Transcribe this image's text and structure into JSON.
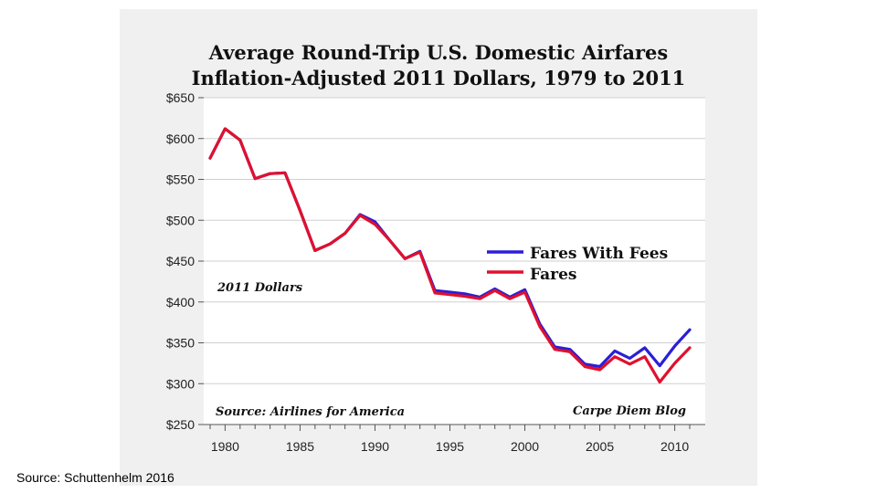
{
  "chart_data": {
    "type": "line",
    "title_line1": "Average Round-Trip U.S. Domestic Airfares",
    "title_line2": "Inflation-Adjusted 2011 Dollars, 1979 to 2011",
    "xlabel": "",
    "ylabel": "",
    "xlim": [
      1979,
      2011
    ],
    "ylim": [
      250,
      650
    ],
    "x_ticks": [
      1980,
      1985,
      1990,
      1995,
      2000,
      2005,
      2010
    ],
    "y_ticks": [
      250,
      300,
      350,
      400,
      450,
      500,
      550,
      600,
      650
    ],
    "y_tick_labels": [
      "$250",
      "$300",
      "$350",
      "$400",
      "$450",
      "$500",
      "$550",
      "$600",
      "$650"
    ],
    "x": [
      1979,
      1980,
      1981,
      1982,
      1983,
      1984,
      1985,
      1986,
      1987,
      1988,
      1989,
      1990,
      1991,
      1992,
      1993,
      1994,
      1995,
      1996,
      1997,
      1998,
      1999,
      2000,
      2001,
      2002,
      2003,
      2004,
      2005,
      2006,
      2007,
      2008,
      2009,
      2010,
      2011
    ],
    "series": [
      {
        "name": "Fares With Fees",
        "color": "#2b1ed6",
        "values": [
          576,
          612,
          598,
          551,
          557,
          558,
          512,
          463,
          471,
          484,
          507,
          498,
          475,
          453,
          462,
          414,
          412,
          410,
          406,
          416,
          406,
          415,
          373,
          345,
          342,
          324,
          321,
          340,
          331,
          344,
          322,
          346,
          366
        ]
      },
      {
        "name": "Fares",
        "color": "#e0102e",
        "values": [
          576,
          612,
          598,
          551,
          557,
          558,
          512,
          463,
          471,
          484,
          506,
          495,
          475,
          453,
          461,
          411,
          409,
          407,
          404,
          414,
          404,
          412,
          370,
          342,
          339,
          321,
          317,
          333,
          324,
          333,
          302,
          325,
          344
        ]
      }
    ],
    "annotations": {
      "units": "2011 Dollars",
      "source": "Source: Airlines for America",
      "blog": "Carpe Diem Blog"
    }
  },
  "footer": {
    "source": "Source: Schuttenhelm 2016"
  }
}
